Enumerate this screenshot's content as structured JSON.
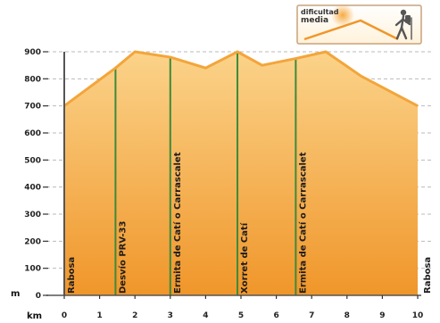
{
  "chart_data": {
    "type": "area",
    "title": "",
    "xlabel": "km",
    "ylabel": "m",
    "xlim": [
      0,
      10
    ],
    "ylim": [
      0,
      900
    ],
    "x_ticks": [
      0,
      1,
      2,
      3,
      4,
      5,
      6,
      7,
      8,
      9,
      10
    ],
    "y_ticks": [
      0,
      100,
      200,
      300,
      400,
      500,
      600,
      700,
      800,
      900
    ],
    "grid": "horizontal-dashed",
    "profile": {
      "x": [
        0,
        1.45,
        2.0,
        3.0,
        4.0,
        4.9,
        5.6,
        6.55,
        7.4,
        8.4,
        10.0
      ],
      "y": [
        700,
        840,
        900,
        880,
        840,
        900,
        850,
        875,
        900,
        810,
        700
      ]
    },
    "waypoints": [
      {
        "km": 0,
        "label": "Rabosa"
      },
      {
        "km": 1.45,
        "label": "Desvío PRV-33"
      },
      {
        "km": 3.0,
        "label": "Ermita de Catí o Carrascalet"
      },
      {
        "km": 4.9,
        "label": "Xorret de Catí"
      },
      {
        "km": 6.55,
        "label": "Ermita de Catí o Carrascalet"
      },
      {
        "km": 10,
        "label": "Rabosa"
      }
    ],
    "colors": {
      "fill_top": "#fbd38a",
      "fill_bottom": "#f0962a",
      "profile_line": "#f3a53a",
      "waypoint_line": "#3d8a3a",
      "axis": "#555555",
      "grid": "#bbbbbb"
    }
  },
  "badge": {
    "line1": "dificultad",
    "line2": "media",
    "icon": "hiker-icon"
  }
}
